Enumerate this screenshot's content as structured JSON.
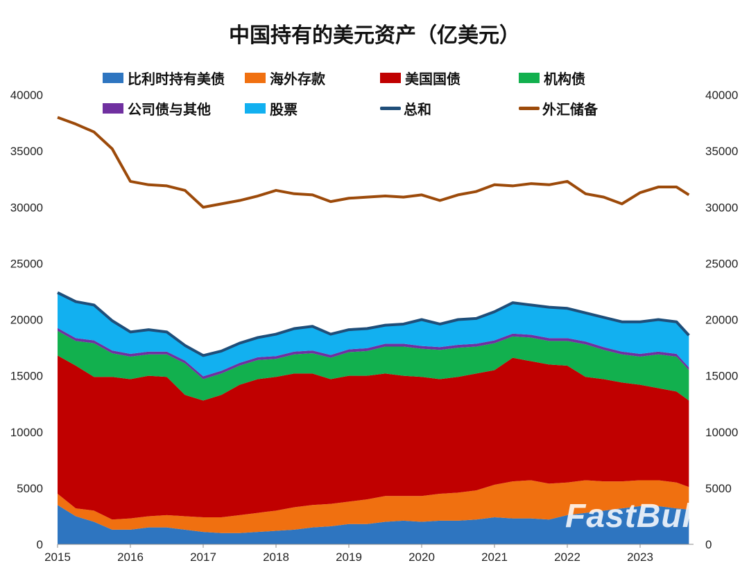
{
  "chart_data": {
    "type": "area",
    "title": "中国持有的美元资产（亿美元）",
    "xlabel": "",
    "ylabel": "",
    "xlim": [
      2015,
      2023.75
    ],
    "ylim": [
      0,
      40000
    ],
    "x_ticks": [
      "2015",
      "2016",
      "2017",
      "2018",
      "2019",
      "2020",
      "2021",
      "2022",
      "2023"
    ],
    "y_ticks": [
      "0",
      "5000",
      "10000",
      "15000",
      "20000",
      "25000",
      "30000",
      "35000",
      "40000"
    ],
    "grid": false,
    "legend_placement": "top",
    "stacked": true,
    "x": [
      2015,
      2015.25,
      2015.5,
      2015.75,
      2016,
      2016.25,
      2016.5,
      2016.75,
      2017,
      2017.25,
      2017.5,
      2017.75,
      2018,
      2018.25,
      2018.5,
      2018.75,
      2019,
      2019.25,
      2019.5,
      2019.75,
      2020,
      2020.25,
      2020.5,
      2020.75,
      2021,
      2021.25,
      2021.5,
      2021.75,
      2022,
      2022.25,
      2022.5,
      2022.75,
      2023,
      2023.25,
      2023.5,
      2023.67
    ],
    "series": [
      {
        "name": "比利时持有美债",
        "kind": "area",
        "color": "#2e75c0",
        "values": [
          3500,
          2500,
          2000,
          1300,
          1300,
          1500,
          1500,
          1300,
          1100,
          1000,
          1000,
          1100,
          1200,
          1300,
          1500,
          1600,
          1800,
          1800,
          2000,
          2100,
          2000,
          2100,
          2100,
          2200,
          2400,
          2300,
          2300,
          2200,
          2600,
          2800,
          3000,
          3200,
          3400,
          3400,
          3200,
          3100
        ]
      },
      {
        "name": "海外存款",
        "kind": "area",
        "color": "#f07010",
        "values": [
          1000,
          700,
          1000,
          900,
          1000,
          1000,
          1100,
          1200,
          1300,
          1400,
          1600,
          1700,
          1800,
          2000,
          2000,
          2000,
          2000,
          2200,
          2300,
          2200,
          2300,
          2400,
          2500,
          2600,
          2900,
          3300,
          3400,
          3200,
          2900,
          2900,
          2600,
          2400,
          2300,
          2300,
          2300,
          2000
        ]
      },
      {
        "name": "美国国债",
        "kind": "area",
        "color": "#c00000",
        "values": [
          12300,
          12700,
          11900,
          12700,
          12400,
          12500,
          12300,
          10800,
          10400,
          10900,
          11600,
          11900,
          11900,
          11900,
          11700,
          11100,
          11200,
          11000,
          10900,
          10700,
          10600,
          10200,
          10300,
          10400,
          10200,
          11000,
          10600,
          10600,
          10400,
          9200,
          9100,
          8800,
          8500,
          8200,
          8100,
          7700
        ]
      },
      {
        "name": "机构债",
        "kind": "area",
        "color": "#12b04e",
        "values": [
          2200,
          2200,
          3000,
          2100,
          2000,
          1900,
          2000,
          2800,
          1900,
          1900,
          1700,
          1700,
          1600,
          1700,
          1800,
          1900,
          2100,
          2200,
          2400,
          2600,
          2500,
          2600,
          2600,
          2400,
          2400,
          1900,
          2100,
          2100,
          2200,
          2900,
          2600,
          2500,
          2500,
          3000,
          3100,
          2700
        ]
      },
      {
        "name": "公司债与其他",
        "kind": "area",
        "color": "#7030a0",
        "values": [
          250,
          250,
          250,
          250,
          250,
          250,
          250,
          250,
          250,
          250,
          250,
          250,
          250,
          250,
          250,
          250,
          250,
          250,
          250,
          250,
          250,
          250,
          250,
          250,
          250,
          250,
          250,
          250,
          250,
          250,
          250,
          250,
          250,
          250,
          250,
          250
        ]
      },
      {
        "name": "股票",
        "kind": "area",
        "color": "#12b0f0",
        "values": [
          3150,
          3250,
          3150,
          2650,
          1950,
          1950,
          1750,
          1350,
          1850,
          1750,
          1750,
          1750,
          1950,
          2050,
          2150,
          1850,
          1750,
          1750,
          1650,
          1750,
          2350,
          2050,
          2250,
          2250,
          2550,
          2750,
          2650,
          2750,
          2650,
          2550,
          2650,
          2650,
          2850,
          2850,
          2850,
          2850
        ]
      },
      {
        "name": "总和",
        "kind": "line",
        "color": "#1f4e79",
        "values": [
          22400,
          21600,
          21300,
          19900,
          18900,
          19100,
          18900,
          17700,
          16800,
          17200,
          17900,
          18400,
          18700,
          19200,
          19400,
          18700,
          19100,
          19200,
          19500,
          19600,
          20000,
          19600,
          20000,
          20100,
          20700,
          21500,
          21300,
          21100,
          21000,
          20600,
          20200,
          19800,
          19800,
          20000,
          19800,
          18600
        ]
      },
      {
        "name": "外汇储备",
        "kind": "line",
        "color": "#9c4a0a",
        "values": [
          38000,
          37400,
          36700,
          35200,
          32300,
          32000,
          31900,
          31500,
          30000,
          30300,
          30600,
          31000,
          31500,
          31200,
          31100,
          30500,
          30800,
          30900,
          31000,
          30900,
          31100,
          30600,
          31100,
          31400,
          32000,
          31900,
          32100,
          32000,
          32300,
          31200,
          30900,
          30300,
          31300,
          31800,
          31800,
          31100
        ]
      }
    ]
  },
  "watermark": "FastBull"
}
